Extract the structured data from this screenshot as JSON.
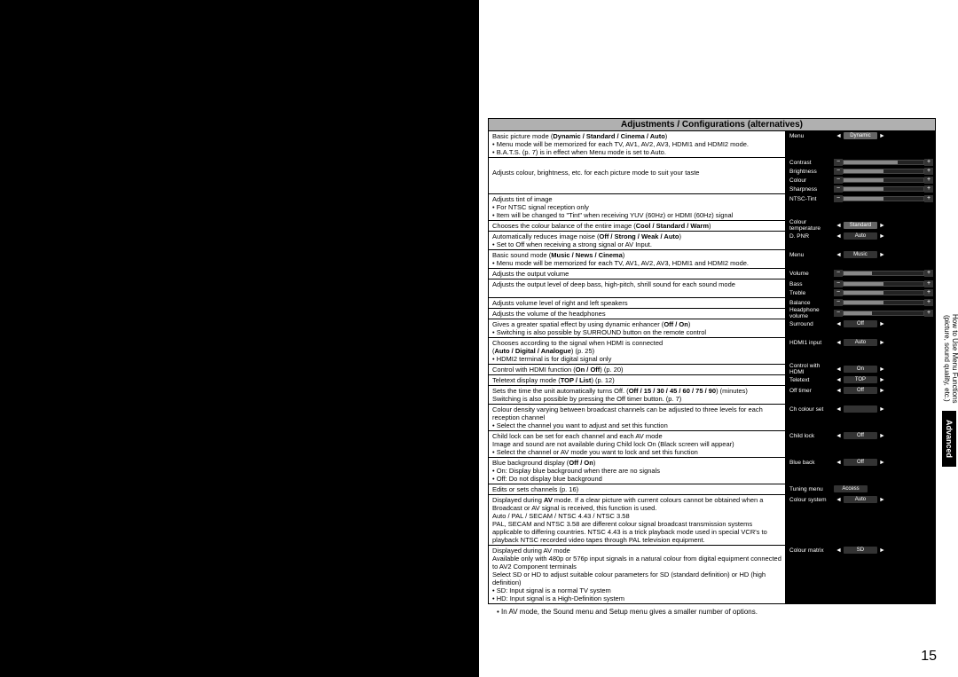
{
  "header": "Adjustments / Configurations (alternatives)",
  "rows": [
    {
      "desc": {
        "lines": [
          {
            "t": "Basic picture mode (<b>Dynamic / Standard / Cinema / Auto</b>)"
          },
          {
            "t": "Menu mode will be memorized for each TV, AV1, AV2, AV3, HDMI1 and HDMI2 mode.",
            "b": true
          },
          {
            "t": "B.A.T.S. (p. 7) is in effect when Menu mode is set to Auto.",
            "b": true
          }
        ]
      },
      "osd": {
        "lines": [
          {
            "label": "Menu",
            "type": "pill",
            "val": "Dynamic",
            "arrows": true
          }
        ]
      },
      "osdBorder": true
    },
    {
      "desc": {
        "lines": [
          {
            "t": "Adjusts colour, brightness, etc. for each picture mode to suit your taste"
          }
        ]
      },
      "desc_pad": true,
      "osd": {
        "lines": [
          {
            "label": "Contrast",
            "type": "slider",
            "fill": 68
          },
          {
            "label": "Brightness",
            "type": "slider",
            "fill": 50
          },
          {
            "label": "Colour",
            "type": "slider",
            "fill": 50
          },
          {
            "label": "Sharpness",
            "type": "slider",
            "fill": 50
          }
        ]
      }
    },
    {
      "desc": {
        "lines": [
          {
            "t": "Adjusts tint of image"
          },
          {
            "t": "For NTSC signal reception only",
            "b": true
          },
          {
            "t": "Item will be changed to \"Tint\" when receiving YUV (60Hz) or HDMI (60Hz) signal",
            "b": true
          }
        ]
      },
      "osd": {
        "lines": [
          {
            "label": "NTSC-Tint",
            "type": "slider",
            "fill": 50
          }
        ]
      }
    },
    {
      "desc": {
        "lines": [
          {
            "t": "Chooses the colour balance of the entire image (<b>Cool / Standard / Warm</b>)"
          }
        ]
      },
      "osd": {
        "lines": [
          {
            "label": "Colour temperature",
            "type": "pill",
            "val": "Standard",
            "arrows": true
          }
        ]
      }
    },
    {
      "desc": {
        "lines": [
          {
            "t": "Automatically reduces image noise (<b>Off / Strong / Weak / Auto</b>)"
          },
          {
            "t": "Set to Off when receiving a strong signal or AV Input.",
            "b": true
          }
        ]
      },
      "osd": {
        "lines": [
          {
            "label": "D. PNR",
            "type": "pill",
            "val": "Auto",
            "arrows": true,
            "dark": true
          }
        ]
      }
    },
    {
      "desc": {
        "lines": [
          {
            "t": "Basic sound mode (<b>Music / News / Cinema</b>)"
          },
          {
            "t": "Menu mode will be memorized for each TV, AV1, AV2, AV3, HDMI1 and HDMI2 mode.",
            "b": true
          }
        ]
      },
      "osd": {
        "lines": [
          {
            "label": "Menu",
            "type": "pill",
            "val": "Music",
            "arrows": true,
            "dark": true
          }
        ]
      }
    },
    {
      "desc": {
        "lines": [
          {
            "t": "Adjusts the output volume"
          }
        ]
      },
      "osd": {
        "lines": [
          {
            "label": "Volume",
            "type": "slider",
            "fill": 35
          }
        ]
      }
    },
    {
      "desc": {
        "lines": [
          {
            "t": "Adjusts the output level of deep bass, high-pitch, shrill sound for each sound mode"
          }
        ]
      },
      "osd": {
        "lines": [
          {
            "label": "Bass",
            "type": "slider",
            "fill": 50
          },
          {
            "label": "Treble",
            "type": "slider",
            "fill": 50
          }
        ]
      }
    },
    {
      "desc": {
        "lines": [
          {
            "t": "Adjusts volume level of right and left speakers"
          }
        ]
      },
      "osd": {
        "lines": [
          {
            "label": "Balance",
            "type": "slider",
            "fill": 50
          }
        ]
      }
    },
    {
      "desc": {
        "lines": [
          {
            "t": "Adjusts the volume of the headphones"
          }
        ]
      },
      "osd": {
        "lines": [
          {
            "label": "Headphone volume",
            "type": "slider",
            "fill": 35
          }
        ]
      }
    },
    {
      "desc": {
        "lines": [
          {
            "t": "Gives a greater spatial effect by using dynamic enhancer (<b>Off / On</b>)"
          },
          {
            "t": "Switching is also possible by SURROUND button on the remote control",
            "b": true
          }
        ]
      },
      "osd": {
        "lines": [
          {
            "label": "Surround",
            "type": "pill",
            "val": "Off",
            "arrows": true,
            "dark": true
          }
        ]
      }
    },
    {
      "desc": {
        "lines": [
          {
            "t": "Chooses according to the signal when HDMI is connected"
          },
          {
            "t": "(<b>Auto / Digital / Analogue</b>) (p. 25)"
          },
          {
            "t": "HDMI2 terminal is for digital signal only",
            "b": true
          }
        ]
      },
      "osd": {
        "lines": [
          {
            "label": "HDMI1 input",
            "type": "pill",
            "val": "Auto",
            "arrows": true,
            "dark": true
          }
        ]
      }
    },
    {
      "desc": {
        "lines": [
          {
            "t": "Control with HDMI function (<b>On / Off</b>) (p. 20)"
          }
        ]
      },
      "osd": {
        "lines": [
          {
            "label": "Control with HDMI",
            "type": "pill",
            "val": "On",
            "arrows": true,
            "dark": true
          }
        ]
      }
    },
    {
      "desc": {
        "lines": [
          {
            "t": "Teletext display mode (<b>TOP / List</b>) (p. 12)"
          }
        ]
      },
      "osd": {
        "lines": [
          {
            "label": "Teletext",
            "type": "pill",
            "val": "TOP",
            "arrows": true,
            "dark": true
          }
        ]
      }
    },
    {
      "desc": {
        "lines": [
          {
            "t": "Sets the time the unit automatically turns Off. (<b>Off / 15 / 30 / 45 / 60 / 75 / 90</b>) (minutes)"
          },
          {
            "t": "Switching is also possible by pressing the Off timer button. (p. 7)"
          }
        ]
      },
      "osd": {
        "lines": [
          {
            "label": "Off timer",
            "type": "pill",
            "val": "Off",
            "arrows": true,
            "dark": true
          }
        ]
      }
    },
    {
      "desc": {
        "lines": [
          {
            "t": "Colour density varying between broadcast channels can be adjusted to three levels for each reception channel"
          },
          {
            "t": "Select the channel you want to adjust and set this function",
            "b": true
          }
        ]
      },
      "osd": {
        "lines": [
          {
            "label": "Ch colour set",
            "type": "pill",
            "val": "",
            "arrows": true,
            "dark": true
          }
        ]
      }
    },
    {
      "desc": {
        "lines": [
          {
            "t": "Child lock can be set for each channel and each AV mode"
          },
          {
            "t": "Image and sound are not available during Child lock On (Black screen will appear)"
          },
          {
            "t": "Select the channel or AV mode you want to lock and set this function",
            "b": true
          }
        ]
      },
      "osd": {
        "lines": [
          {
            "label": "Child lock",
            "type": "pill",
            "val": "Off",
            "arrows": true,
            "dark": true
          }
        ]
      }
    },
    {
      "desc": {
        "lines": [
          {
            "t": "Blue background display (<b>Off / On</b>)"
          },
          {
            "t": "On: Display blue background when there are no signals",
            "b": true
          },
          {
            "t": "Off: Do not display blue background",
            "b": true
          }
        ]
      },
      "osd": {
        "lines": [
          {
            "label": "Blue back",
            "type": "pill",
            "val": "Off",
            "arrows": true,
            "dark": true
          }
        ]
      }
    },
    {
      "desc": {
        "lines": [
          {
            "t": "Edits or sets channels (p. 16)"
          }
        ]
      },
      "osd": {
        "lines": [
          {
            "label": "Tuning menu",
            "type": "pill",
            "val": "Access",
            "arrows": false,
            "dark": true
          }
        ]
      }
    },
    {
      "desc": {
        "lines": [
          {
            "t": "Displayed during <b>AV</b> mode. If a clear picture with current colours cannot be obtained when a Broadcast or AV signal is received, this function is used."
          },
          {
            "t": "Auto / PAL / SECAM / NTSC 4.43 / NTSC 3.58"
          },
          {
            "t": "PAL, SECAM and NTSC 3.58 are different colour signal broadcast transmission systems applicable to differing countries. NTSC 4.43 is a trick playback mode used in special VCR's to playback NTSC recorded video tapes through PAL television equipment."
          }
        ]
      },
      "osd": {
        "lines": [
          {
            "label": "Colour system",
            "type": "pill",
            "val": "Auto",
            "arrows": true,
            "dark": true
          }
        ]
      }
    },
    {
      "desc": {
        "lines": [
          {
            "t": "Displayed during AV mode"
          },
          {
            "t": "Available only with 480p or 576p input signals in a natural colour from digital equipment connected to AV2 Component terminals"
          },
          {
            "t": "Select SD or HD to adjust suitable colour parameters for SD (standard definition) or HD (high definition)"
          },
          {
            "t": "SD: Input signal is a normal TV system",
            "b": true
          },
          {
            "t": "HD: Input signal is a High-Definition system",
            "b": true
          }
        ]
      },
      "osd": {
        "lines": [
          {
            "label": "Colour matrix",
            "type": "pill",
            "val": "SD",
            "arrows": true,
            "dark": true
          }
        ]
      }
    }
  ],
  "footnote": "In AV mode, the Sound menu and Setup menu gives a smaller number of options.",
  "pagenum": "15",
  "side": {
    "title": "How to Use Menu Functions",
    "sub": "(picture, sound quality, etc.)",
    "adv": "Advanced"
  }
}
